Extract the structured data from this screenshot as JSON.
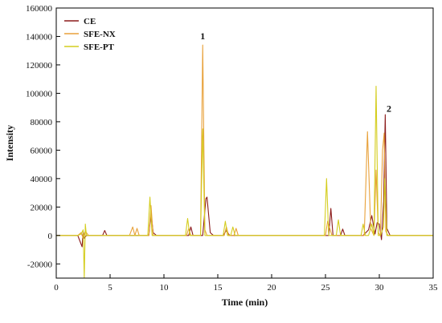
{
  "chart_data": {
    "type": "line",
    "title": "",
    "xlabel": "Time (min)",
    "ylabel": "Intensity",
    "xlim": [
      0,
      35
    ],
    "ylim": [
      -30000,
      160000
    ],
    "xticks": [
      0,
      5,
      10,
      15,
      20,
      25,
      30,
      35
    ],
    "yticks": [
      -20000,
      0,
      20000,
      40000,
      60000,
      80000,
      100000,
      120000,
      140000,
      160000
    ],
    "xtick_labels": [
      "0",
      "5",
      "10",
      "15",
      "20",
      "25",
      "30",
      "35"
    ],
    "ytick_labels": [
      "-20000",
      "0",
      "20000",
      "40000",
      "60000",
      "80000",
      "100000",
      "120000",
      "140000",
      "160000"
    ],
    "grid": false,
    "legend_position": "top-left",
    "annotations": [
      {
        "text": "1",
        "x": 13.6,
        "y": 138000
      },
      {
        "text": "2",
        "x": 30.9,
        "y": 87000
      }
    ],
    "series": [
      {
        "name": "CE",
        "color": "#8b1a1a",
        "x": [
          0,
          2.0,
          2.2,
          2.4,
          2.5,
          2.6,
          2.8,
          3.2,
          4.3,
          4.5,
          4.7,
          6.0,
          8.6,
          8.8,
          9.0,
          9.3,
          12.3,
          12.5,
          12.7,
          13.6,
          13.9,
          14.0,
          14.3,
          14.6,
          15.5,
          15.8,
          16.1,
          20.0,
          25.3,
          25.5,
          25.7,
          26.4,
          26.6,
          26.8,
          28.5,
          29.0,
          29.3,
          29.6,
          29.8,
          30.0,
          30.2,
          30.4,
          30.55,
          30.7,
          31.0,
          35.0
        ],
        "y": [
          0,
          0,
          -4000,
          -8000,
          3000,
          -2000,
          0,
          0,
          0,
          3500,
          0,
          0,
          0,
          16000,
          2000,
          0,
          0,
          6000,
          0,
          0,
          26000,
          27000,
          2000,
          0,
          0,
          3500,
          0,
          0,
          0,
          19000,
          0,
          0,
          4500,
          0,
          0,
          4000,
          14000,
          1000,
          9000,
          8000,
          -3000,
          24000,
          85000,
          5000,
          0,
          0
        ]
      },
      {
        "name": "SFE-NX",
        "color": "#e8a13a",
        "x": [
          0,
          2.0,
          2.3,
          2.5,
          2.7,
          3.0,
          6.8,
          7.1,
          7.3,
          7.5,
          7.7,
          8.6,
          8.8,
          9.0,
          12.1,
          12.3,
          12.5,
          13.4,
          13.6,
          13.8,
          14.0,
          15.6,
          15.8,
          16.0,
          16.5,
          16.7,
          16.9,
          25.0,
          25.2,
          25.4,
          25.6,
          28.6,
          28.9,
          29.2,
          29.5,
          29.7,
          29.9,
          30.1,
          30.3,
          30.45,
          30.6,
          30.8,
          35.0
        ],
        "y": [
          0,
          0,
          2000,
          -2000,
          3000,
          0,
          0,
          6000,
          0,
          5000,
          0,
          0,
          21000,
          0,
          0,
          5000,
          0,
          0,
          134000,
          4000,
          0,
          0,
          6000,
          0,
          0,
          5000,
          0,
          0,
          10000,
          5000,
          0,
          0,
          73000,
          5000,
          0,
          46000,
          2000,
          0,
          60000,
          72000,
          3000,
          0,
          0
        ]
      },
      {
        "name": "SFE-PT",
        "color": "#d4cd1e",
        "x": [
          0,
          2.0,
          2.3,
          2.5,
          2.6,
          2.7,
          2.8,
          3.0,
          8.5,
          8.7,
          8.9,
          12.0,
          12.2,
          12.4,
          13.4,
          13.6,
          13.8,
          15.5,
          15.7,
          15.9,
          16.2,
          16.4,
          16.6,
          24.9,
          25.1,
          25.3,
          26.0,
          26.2,
          26.4,
          28.3,
          28.5,
          28.7,
          29.0,
          29.3,
          29.5,
          29.7,
          29.9,
          30.1,
          30.4,
          30.5,
          30.7,
          35.0
        ],
        "y": [
          0,
          0,
          1000,
          4000,
          -30000,
          8000,
          0,
          0,
          0,
          27000,
          0,
          0,
          12000,
          0,
          0,
          75000,
          0,
          0,
          10000,
          0,
          0,
          6000,
          0,
          0,
          40000,
          0,
          0,
          11000,
          0,
          0,
          8000,
          0,
          0,
          8000,
          0,
          105000,
          0,
          0,
          6000,
          40000,
          0,
          0
        ]
      }
    ]
  }
}
